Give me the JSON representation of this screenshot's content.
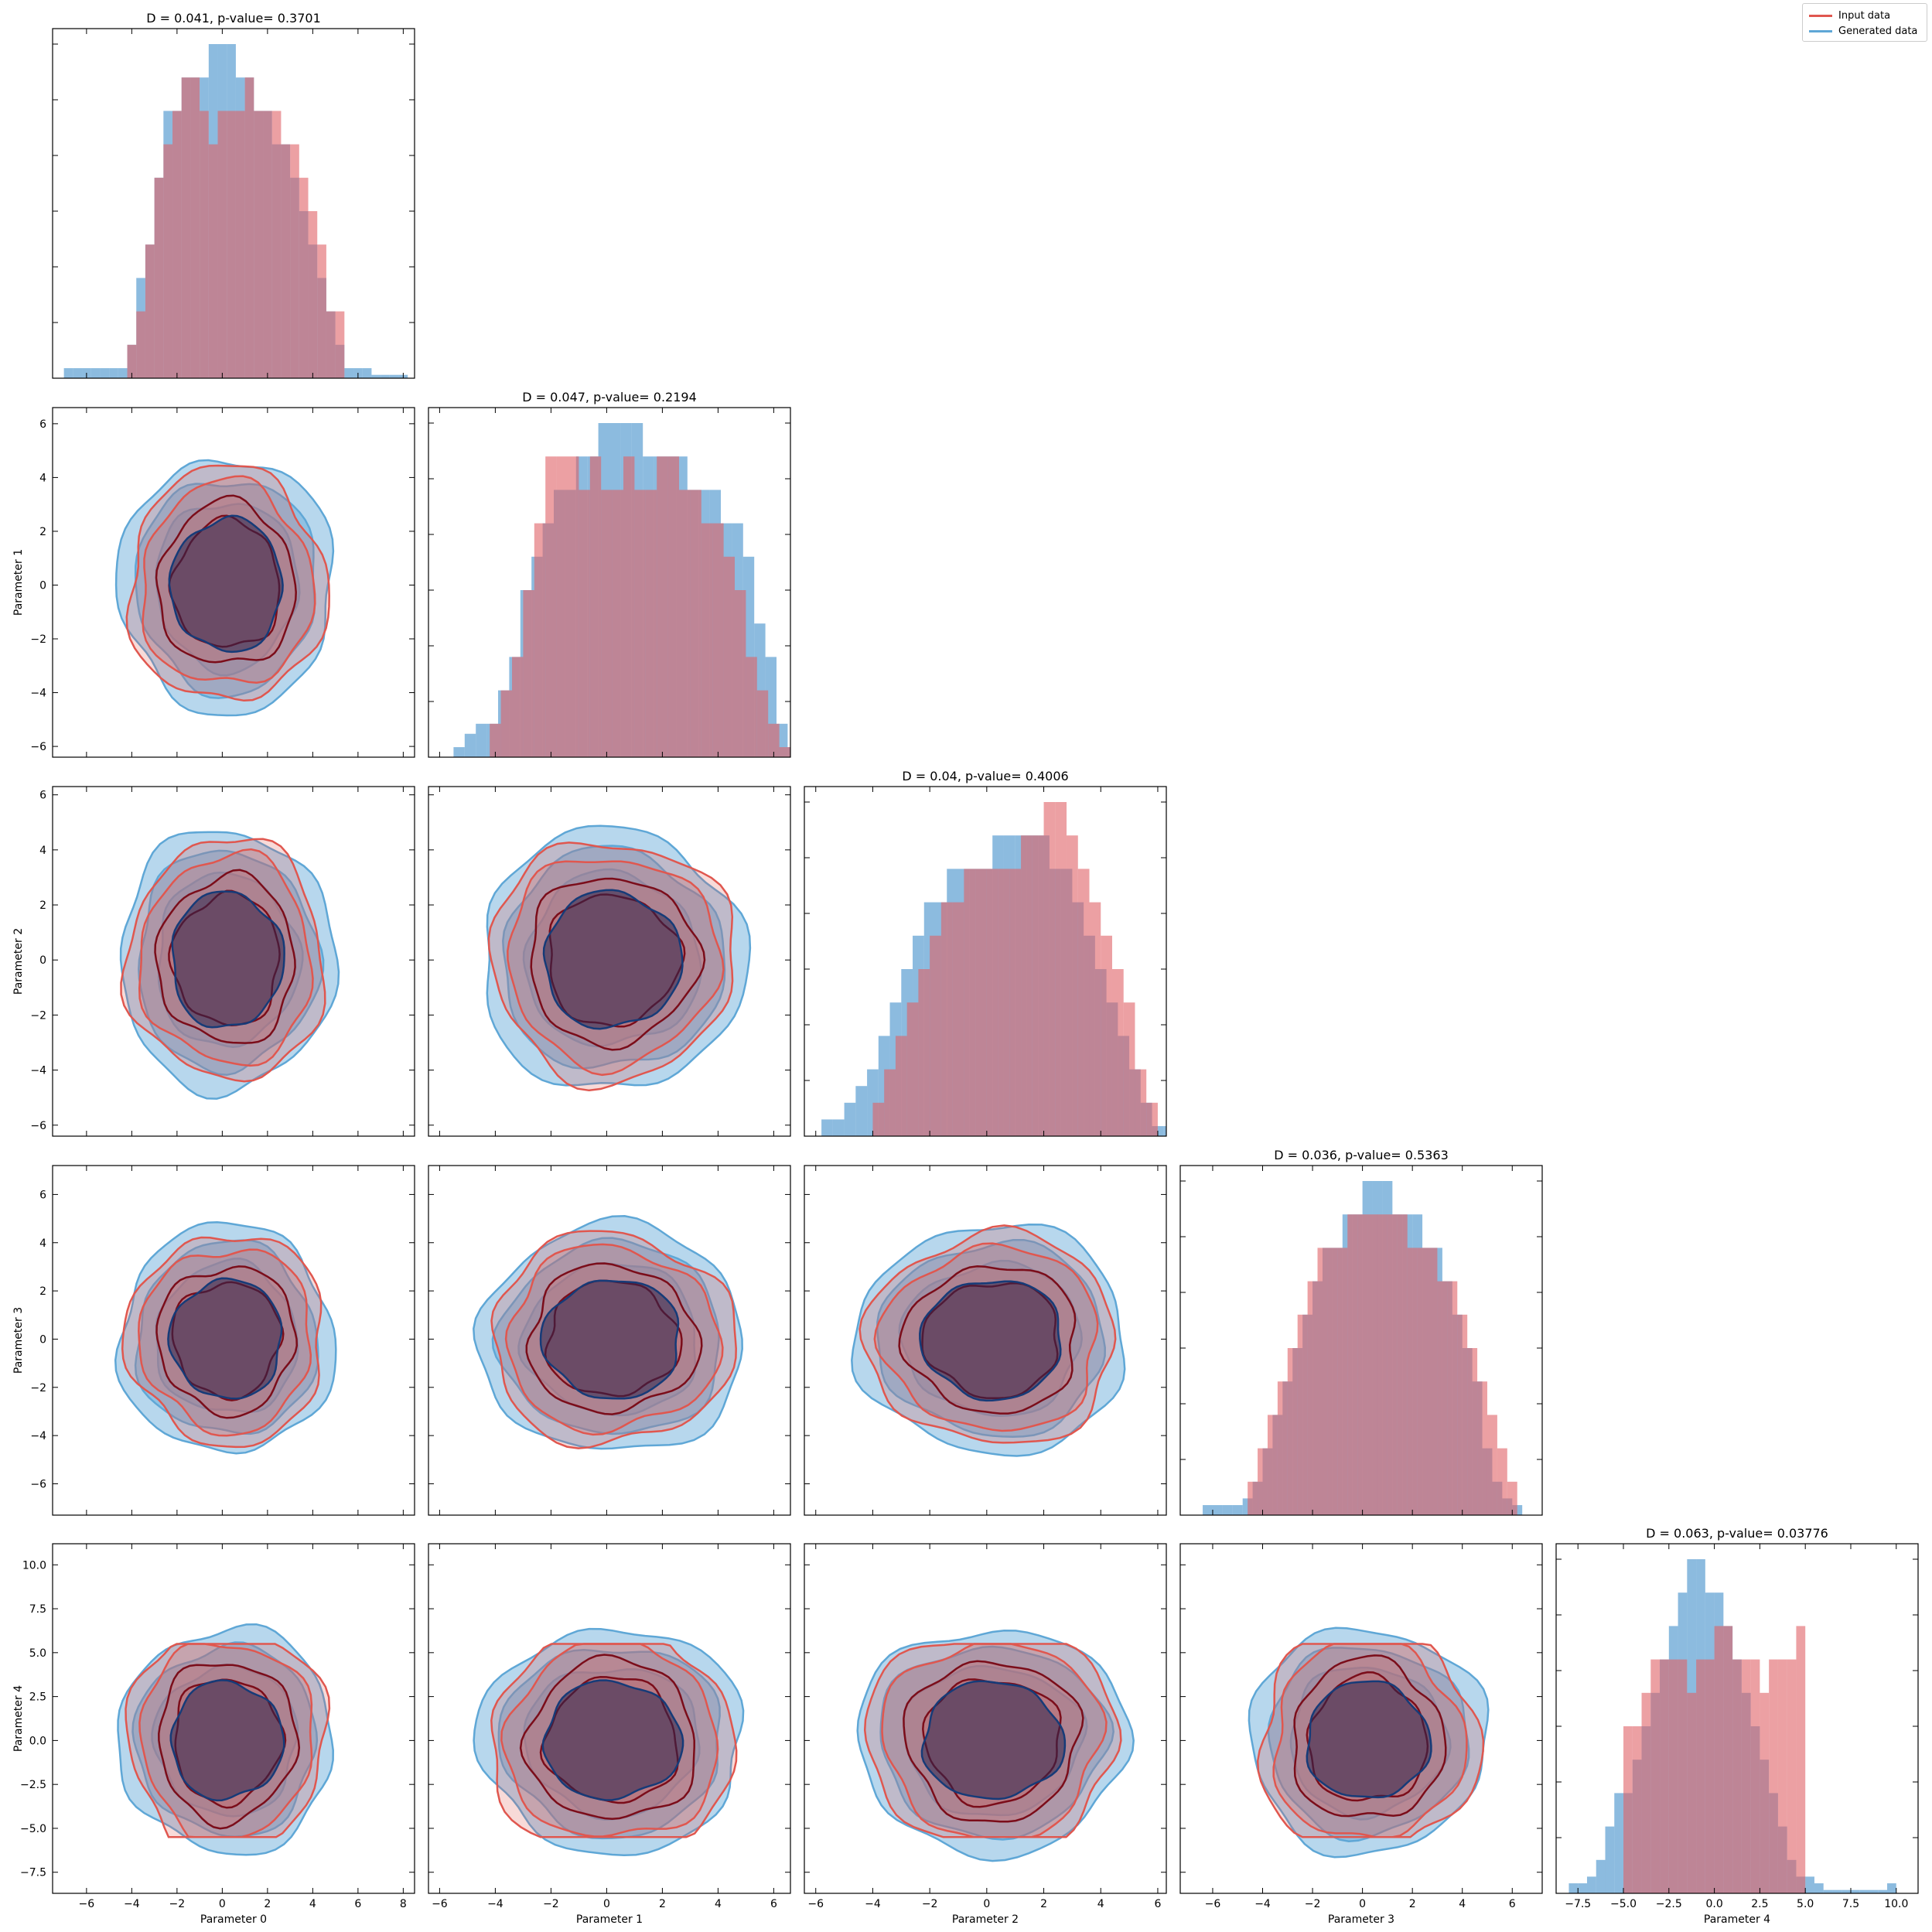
{
  "colors": {
    "input": "#e0574f",
    "input_hist": "#e06066",
    "input_dark": "#7b0d1a",
    "generated": "#5fa7d6",
    "generated_hist": "#3f8ec9",
    "generated_dark": "#163b78",
    "overlap_core": "#2c2650"
  },
  "legend": {
    "input_label": "Input data",
    "generated_label": "Generated data"
  },
  "chart_data": {
    "type": "corner",
    "parameters": [
      "Parameter 0",
      "Parameter 1",
      "Parameter 2",
      "Parameter 3",
      "Parameter 4"
    ],
    "legend_placement": "top-right",
    "grid": false,
    "axis_ranges": [
      [
        -7.5,
        8.5
      ],
      [
        -6.4,
        6.6
      ],
      [
        -6.4,
        6.3
      ],
      [
        -7.3,
        7.2
      ],
      [
        -8.7,
        11.2
      ]
    ],
    "ticks": {
      "x": [
        [
          -6,
          -4,
          -2,
          0,
          2,
          4,
          6,
          8
        ],
        [
          -6,
          -4,
          -2,
          0,
          2,
          4,
          6
        ],
        [
          -6,
          -4,
          -2,
          0,
          2,
          4,
          6
        ],
        [
          -6,
          -4,
          -2,
          0,
          2,
          4,
          6
        ],
        [
          -7.5,
          -5.0,
          -2.5,
          0.0,
          2.5,
          5.0,
          7.5,
          10.0
        ]
      ],
      "y": [
        [],
        [
          -6,
          -4,
          -2,
          0,
          2,
          4,
          6
        ],
        [
          -6,
          -4,
          -2,
          0,
          2,
          4,
          6
        ],
        [
          -6,
          -4,
          -2,
          0,
          2,
          4,
          6
        ],
        [
          -7.5,
          -5.0,
          -2.5,
          0.0,
          2.5,
          5.0,
          7.5,
          10.0
        ]
      ]
    },
    "tick_labels": {
      "x": [
        [
          "−6",
          "−4",
          "−2",
          "0",
          "2",
          "4",
          "6",
          "8"
        ],
        [
          "−6",
          "−4",
          "−2",
          "0",
          "2",
          "4",
          "6"
        ],
        [
          "−6",
          "−4",
          "−2",
          "0",
          "2",
          "4",
          "6"
        ],
        [
          "−6",
          "−4",
          "−2",
          "0",
          "2",
          "4",
          "6"
        ],
        [
          "−7.5",
          "−5.0",
          "−2.5",
          "0.0",
          "2.5",
          "5.0",
          "7.5",
          "10.0"
        ]
      ],
      "y": [
        [],
        [
          "−6",
          "−4",
          "−2",
          "0",
          "2",
          "4",
          "6"
        ],
        [
          "−6",
          "−4",
          "−2",
          "0",
          "2",
          "4",
          "6"
        ],
        [
          "−6",
          "−4",
          "−2",
          "0",
          "2",
          "4",
          "6"
        ],
        [
          "−7.5",
          "−5.0",
          "−2.5",
          "0.0",
          "2.5",
          "5.0",
          "7.5",
          "10.0"
        ]
      ]
    },
    "diagonal": [
      {
        "title": "D = 0.041, p-value= 0.3701",
        "input": {
          "start": -4.2,
          "width": 0.4,
          "counts": [
            1,
            2,
            4,
            6,
            7,
            8,
            9,
            9,
            8,
            7,
            8,
            8,
            8,
            9,
            8,
            8,
            8,
            7,
            7,
            6,
            5,
            4,
            2,
            2
          ]
        },
        "generated": {
          "start": -7.0,
          "width": 0.4,
          "counts": [
            0.3,
            0.3,
            0.3,
            0.3,
            0.3,
            0.3,
            0.3,
            1,
            3,
            4,
            6,
            8,
            8,
            9,
            9,
            9,
            10,
            10,
            10,
            9,
            9,
            8,
            8,
            7,
            7,
            6,
            5,
            4,
            3,
            2,
            1,
            0.3,
            0.3,
            0.3,
            0.1,
            0.1,
            0.1,
            0.1
          ]
        }
      },
      {
        "title": "D = 0.047, p-value= 0.2194",
        "input": {
          "start": -4.2,
          "width": 0.4,
          "counts": [
            1,
            2,
            3,
            5,
            7,
            9,
            9,
            9,
            8,
            9,
            8,
            8,
            9,
            8,
            8,
            9,
            9,
            8,
            8,
            7,
            7,
            6,
            5,
            3,
            2,
            1,
            0.3
          ]
        },
        "generated": {
          "start": -5.5,
          "width": 0.4,
          "counts": [
            0.3,
            0.7,
            1,
            1,
            2,
            3,
            5,
            6,
            7,
            8,
            8,
            9,
            9,
            10,
            10,
            10,
            10,
            9,
            9,
            9,
            9,
            8,
            8,
            8,
            7,
            7,
            6,
            4,
            3,
            1,
            0.3,
            0.3
          ]
        }
      },
      {
        "title": "D = 0.04, p-value= 0.4006",
        "input": {
          "start": -4.0,
          "width": 0.4,
          "counts": [
            1,
            2,
            3,
            4,
            5,
            6,
            7,
            7,
            8,
            8,
            8,
            8,
            8,
            9,
            9,
            10,
            10,
            9,
            8,
            7,
            6,
            5,
            4,
            2,
            1
          ]
        },
        "generated": {
          "start": -5.8,
          "width": 0.4,
          "counts": [
            0.5,
            0.5,
            1,
            1.5,
            2,
            3,
            4,
            5,
            6,
            7,
            7,
            8,
            8,
            8,
            8,
            9,
            9,
            9,
            9,
            9,
            8,
            8,
            7,
            6,
            5,
            4,
            3,
            2,
            1,
            0.3,
            0.3
          ]
        }
      },
      {
        "title": "D = 0.036, p-value= 0.5363",
        "input": {
          "start": -4.6,
          "width": 0.4,
          "counts": [
            1,
            2,
            3,
            4,
            5,
            6,
            7,
            8,
            8,
            8,
            9,
            9,
            9,
            9,
            9,
            9,
            8,
            8,
            8,
            7,
            7,
            6,
            5,
            4,
            3,
            2,
            1
          ]
        },
        "generated": {
          "start": -6.4,
          "width": 0.4,
          "counts": [
            0.3,
            0.3,
            0.3,
            0.3,
            0.5,
            1,
            2,
            3,
            4,
            5,
            6,
            7,
            8,
            8,
            9,
            9,
            10,
            10,
            10,
            9,
            9,
            9,
            8,
            8,
            7,
            6,
            5,
            4,
            2,
            1,
            0.5,
            0.3
          ]
        }
      },
      {
        "title": "D = 0.063, p-value= 0.03776",
        "input": {
          "start": -5.0,
          "width": 0.5,
          "counts": [
            5,
            5,
            6,
            7,
            7,
            7,
            7,
            6,
            7,
            7,
            8,
            8,
            7,
            7,
            7,
            6,
            7,
            7,
            7,
            8
          ]
        },
        "generated": {
          "start": -8.0,
          "width": 0.5,
          "counts": [
            0.3,
            0.3,
            0.5,
            1,
            2,
            3,
            3,
            4,
            5,
            6,
            7,
            8,
            9,
            10,
            10,
            9,
            9,
            8,
            7,
            6,
            5,
            4,
            3,
            2,
            1,
            0.5,
            0.5,
            0.3,
            0.1,
            0.1,
            0.1,
            0.1,
            0.1,
            0.1,
            0.1,
            0.3
          ]
        }
      }
    ],
    "contour_levels": {
      "generated_radius": [
        5.0,
        4.2,
        3.3
      ],
      "input_radius": [
        4.6,
        4.0,
        3.2,
        2.5
      ],
      "input_param4_halfwidth": 5.5
    }
  }
}
